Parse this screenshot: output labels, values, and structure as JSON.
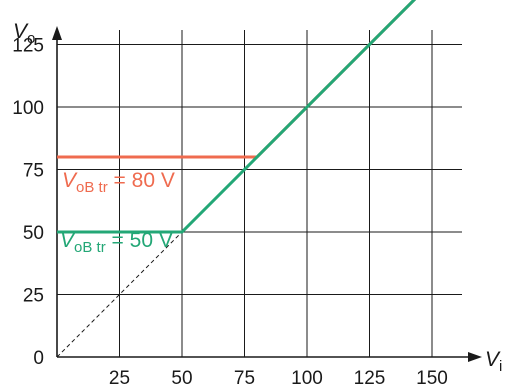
{
  "chart_data": {
    "type": "line",
    "title": "",
    "xlabel": {
      "main": "V",
      "sub": "i"
    },
    "ylabel": {
      "main": "V",
      "sub": "o"
    },
    "xlim": [
      0,
      160
    ],
    "ylim": [
      0,
      160
    ],
    "grid": true,
    "x_ticks": [
      25,
      50,
      75,
      100,
      125,
      150
    ],
    "y_ticks": [
      0,
      25,
      50,
      75,
      100,
      125,
      150
    ],
    "x_tick_labels": [
      "25",
      "50",
      "75",
      "100",
      "125",
      "150"
    ],
    "y_tick_labels": [
      "0",
      "25",
      "50",
      "75",
      "100",
      "125",
      "150"
    ],
    "series": [
      {
        "annotation": {
          "main": "V",
          "sub": "oB tr",
          "rest": " = 80 V"
        },
        "color": "#ef6b4f",
        "points": [
          [
            0,
            80
          ],
          [
            80,
            80
          ],
          [
            155,
            155
          ]
        ]
      },
      {
        "annotation": {
          "main": "V",
          "sub": "oB tr",
          "rest": " = 50 V"
        },
        "color": "#23a776",
        "points": [
          [
            0,
            50
          ],
          [
            50,
            50
          ],
          [
            155,
            155
          ]
        ]
      }
    ],
    "reference_line": {
      "style": "dashed",
      "color": "#1a1a1a",
      "points": [
        [
          0,
          0
        ],
        [
          50,
          50
        ]
      ]
    }
  }
}
